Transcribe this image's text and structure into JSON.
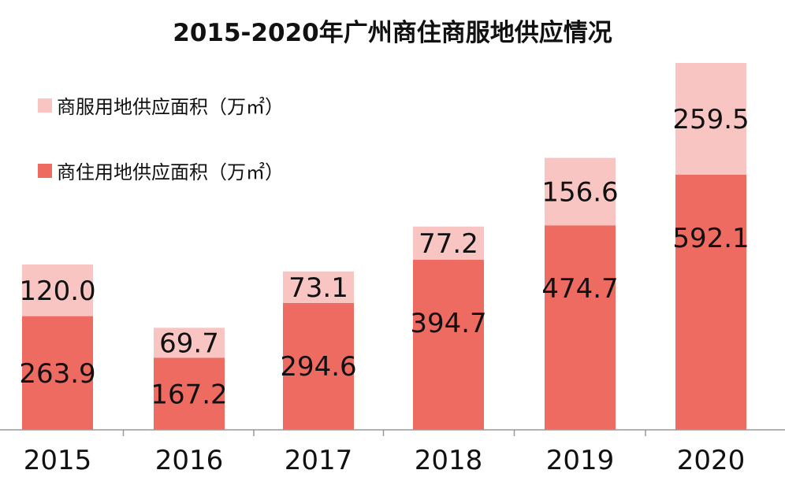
{
  "chart_data": {
    "type": "bar",
    "stacked": true,
    "title": "2015-2020年广州商住商服地供应情况",
    "categories": [
      "2015",
      "2016",
      "2017",
      "2018",
      "2019",
      "2020"
    ],
    "series": [
      {
        "name": "商住用地供应面积（万㎡）",
        "color": "#ee6b62",
        "values": [
          263.9,
          167.2,
          294.6,
          394.7,
          474.7,
          592.1
        ]
      },
      {
        "name": "商服用地供应面积（万㎡）",
        "color": "#f8c5c3",
        "values": [
          120.0,
          69.7,
          73.1,
          77.2,
          156.6,
          259.5
        ]
      }
    ],
    "value_labels": {
      "base": [
        "263.9",
        "167.2",
        "294.6",
        "394.7",
        "474.7",
        "592.1"
      ],
      "top": [
        "120.0",
        "69.7",
        "73.1",
        "77.2",
        "156.6",
        "259.5"
      ]
    },
    "ylim": [
      0,
      851.6
    ],
    "grid": false,
    "legend_position": "top-left",
    "axis_color": "#999999"
  }
}
